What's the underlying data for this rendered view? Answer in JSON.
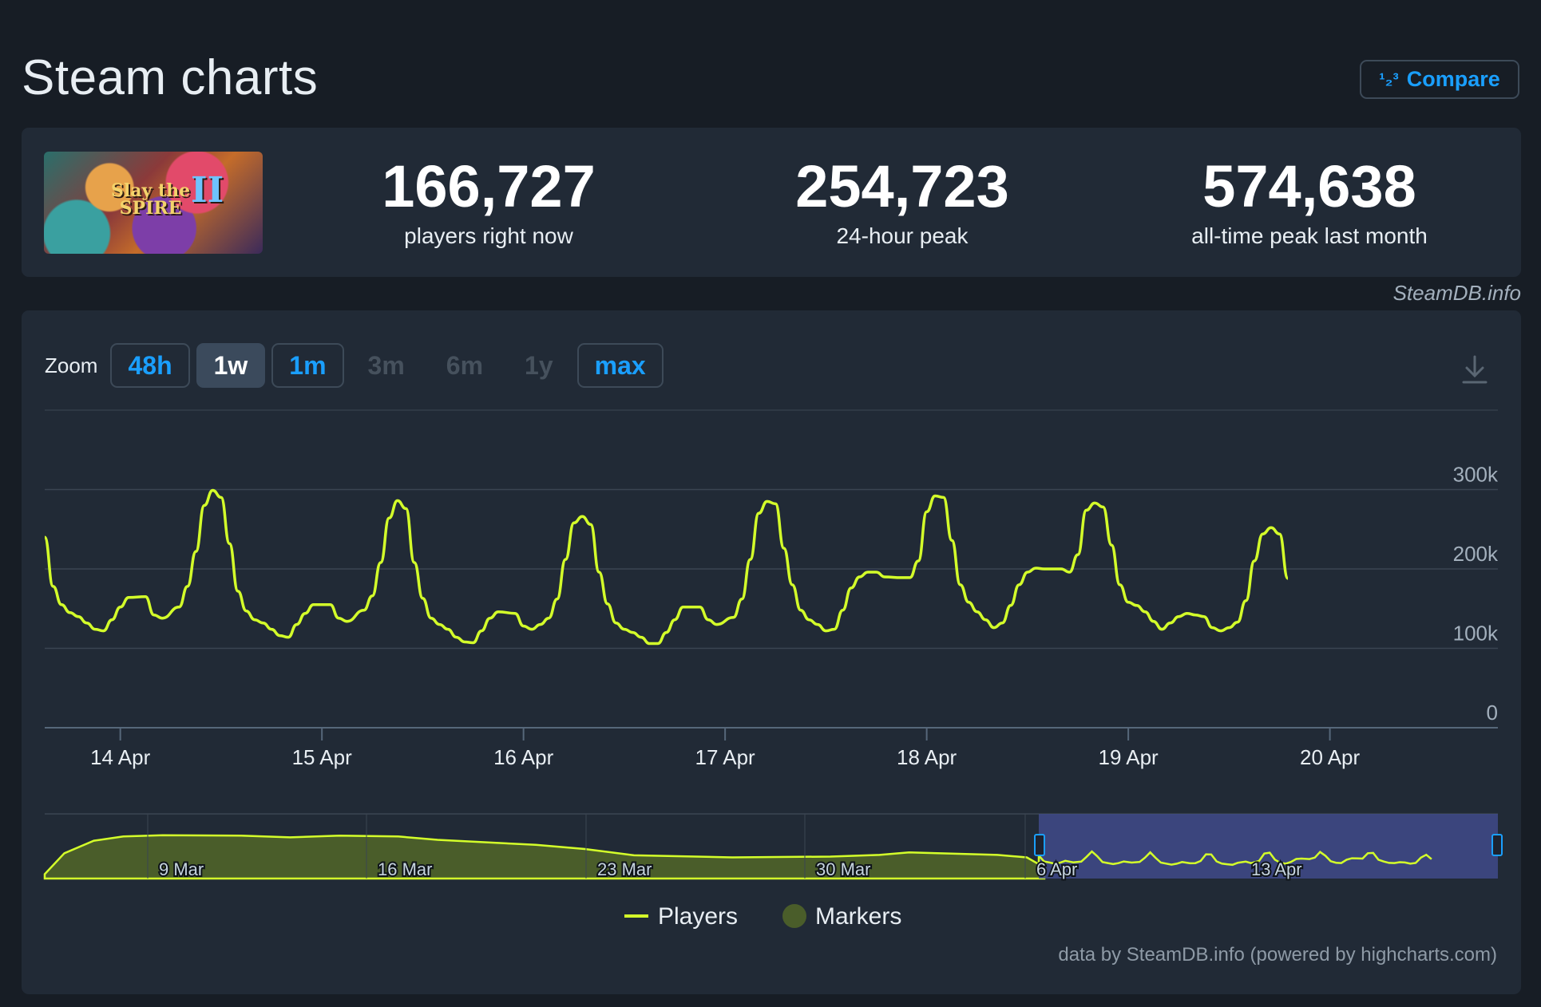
{
  "header": {
    "title": "Steam charts",
    "compare_label": "Compare",
    "compare_icon": "¹₂³"
  },
  "game": {
    "thumb_title_line1": "Slay the",
    "thumb_title_line2": "SPIRE",
    "thumb_title_numeral": "II"
  },
  "stats": {
    "current_players": "166,727",
    "current_players_label": "players right now",
    "peak_24h": "254,723",
    "peak_24h_label": "24-hour peak",
    "all_time_peak": "574,638",
    "all_time_peak_label": "all-time peak last month"
  },
  "attribution": "SteamDB.info",
  "zoom": {
    "label": "Zoom",
    "buttons": [
      {
        "label": "48h",
        "state": "on"
      },
      {
        "label": "1w",
        "state": "selected"
      },
      {
        "label": "1m",
        "state": "on"
      },
      {
        "label": "3m",
        "state": "off"
      },
      {
        "label": "6m",
        "state": "off"
      },
      {
        "label": "1y",
        "state": "off"
      },
      {
        "label": "max",
        "state": "on"
      }
    ]
  },
  "colors": {
    "players_line": "#d4ff2a",
    "navigator_fill": "#4a5d2a",
    "navigator_selection": "#3f4a8a",
    "markers": "#4a5d2a",
    "background": "#171d25",
    "card": "#212a36"
  },
  "chart_data": {
    "type": "line",
    "title": "",
    "xlabel": "",
    "ylabel": "",
    "ylim": [
      0,
      400000
    ],
    "y_ticks": [
      {
        "value": 0,
        "label": "0"
      },
      {
        "value": 100000,
        "label": "100k"
      },
      {
        "value": 200000,
        "label": "200k"
      },
      {
        "value": 300000,
        "label": "300k"
      }
    ],
    "x_ticks": [
      {
        "x": "2025-04-14",
        "label": "14 Apr"
      },
      {
        "x": "2025-04-15",
        "label": "15 Apr"
      },
      {
        "x": "2025-04-16",
        "label": "16 Apr"
      },
      {
        "x": "2025-04-17",
        "label": "17 Apr"
      },
      {
        "x": "2025-04-18",
        "label": "18 Apr"
      },
      {
        "x": "2025-04-19",
        "label": "19 Apr"
      },
      {
        "x": "2025-04-20",
        "label": "20 Apr"
      }
    ],
    "x_range": [
      "2025-04-13 15:00",
      "2025-04-20 20:00"
    ],
    "grid": true,
    "series": [
      {
        "name": "Players",
        "points": [
          [
            "2025-04-13 15:00",
            240000
          ],
          [
            "2025-04-13 16:00",
            178000
          ],
          [
            "2025-04-13 17:00",
            155000
          ],
          [
            "2025-04-13 18:00",
            145000
          ],
          [
            "2025-04-13 19:00",
            140000
          ],
          [
            "2025-04-13 20:00",
            132000
          ],
          [
            "2025-04-13 21:00",
            124000
          ],
          [
            "2025-04-13 22:00",
            122000
          ],
          [
            "2025-04-13 23:00",
            136000
          ],
          [
            "2025-04-14 00:00",
            152000
          ],
          [
            "2025-04-14 01:00",
            164000
          ],
          [
            "2025-04-14 03:00",
            165000
          ],
          [
            "2025-04-14 04:00",
            142000
          ],
          [
            "2025-04-14 05:00",
            138000
          ],
          [
            "2025-04-14 07:00",
            152000
          ],
          [
            "2025-04-14 08:00",
            178000
          ],
          [
            "2025-04-14 09:00",
            222000
          ],
          [
            "2025-04-14 10:00",
            280000
          ],
          [
            "2025-04-14 11:00",
            299000
          ],
          [
            "2025-04-14 12:00",
            290000
          ],
          [
            "2025-04-14 13:00",
            232000
          ],
          [
            "2025-04-14 14:00",
            172000
          ],
          [
            "2025-04-14 15:00",
            147000
          ],
          [
            "2025-04-14 16:00",
            136000
          ],
          [
            "2025-04-14 17:00",
            132000
          ],
          [
            "2025-04-14 18:00",
            124000
          ],
          [
            "2025-04-14 19:00",
            116000
          ],
          [
            "2025-04-14 20:00",
            114000
          ],
          [
            "2025-04-14 21:00",
            130000
          ],
          [
            "2025-04-14 22:00",
            144000
          ],
          [
            "2025-04-14 23:00",
            155000
          ],
          [
            "2025-04-15 01:00",
            155000
          ],
          [
            "2025-04-15 02:00",
            138000
          ],
          [
            "2025-04-15 03:00",
            134000
          ],
          [
            "2025-04-15 05:00",
            148000
          ],
          [
            "2025-04-15 06:00",
            166000
          ],
          [
            "2025-04-15 07:00",
            208000
          ],
          [
            "2025-04-15 08:00",
            264000
          ],
          [
            "2025-04-15 09:00",
            286000
          ],
          [
            "2025-04-15 10:00",
            276000
          ],
          [
            "2025-04-15 11:00",
            208000
          ],
          [
            "2025-04-15 12:00",
            163000
          ],
          [
            "2025-04-15 13:00",
            138000
          ],
          [
            "2025-04-15 14:00",
            130000
          ],
          [
            "2025-04-15 15:00",
            124000
          ],
          [
            "2025-04-15 16:00",
            114000
          ],
          [
            "2025-04-15 17:00",
            108000
          ],
          [
            "2025-04-15 18:00",
            107000
          ],
          [
            "2025-04-15 19:00",
            122000
          ],
          [
            "2025-04-15 20:00",
            138000
          ],
          [
            "2025-04-15 21:00",
            146000
          ],
          [
            "2025-04-15 23:00",
            144000
          ],
          [
            "2025-04-16 00:00",
            128000
          ],
          [
            "2025-04-16 01:00",
            124000
          ],
          [
            "2025-04-16 02:00",
            130000
          ],
          [
            "2025-04-16 03:00",
            138000
          ],
          [
            "2025-04-16 04:00",
            162000
          ],
          [
            "2025-04-16 05:00",
            212000
          ],
          [
            "2025-04-16 06:00",
            258000
          ],
          [
            "2025-04-16 07:00",
            266000
          ],
          [
            "2025-04-16 08:00",
            256000
          ],
          [
            "2025-04-16 09:00",
            196000
          ],
          [
            "2025-04-16 10:00",
            156000
          ],
          [
            "2025-04-16 11:00",
            132000
          ],
          [
            "2025-04-16 12:00",
            124000
          ],
          [
            "2025-04-16 13:00",
            120000
          ],
          [
            "2025-04-16 14:00",
            114000
          ],
          [
            "2025-04-16 15:00",
            106000
          ],
          [
            "2025-04-16 16:00",
            106000
          ],
          [
            "2025-04-16 17:00",
            120000
          ],
          [
            "2025-04-16 18:00",
            136000
          ],
          [
            "2025-04-16 19:00",
            152000
          ],
          [
            "2025-04-16 21:00",
            152000
          ],
          [
            "2025-04-16 22:00",
            136000
          ],
          [
            "2025-04-16 23:00",
            130000
          ],
          [
            "2025-04-17 01:00",
            139000
          ],
          [
            "2025-04-17 02:00",
            162000
          ],
          [
            "2025-04-17 03:00",
            212000
          ],
          [
            "2025-04-17 04:00",
            270000
          ],
          [
            "2025-04-17 05:00",
            285000
          ],
          [
            "2025-04-17 06:00",
            282000
          ],
          [
            "2025-04-17 07:00",
            226000
          ],
          [
            "2025-04-17 08:00",
            180000
          ],
          [
            "2025-04-17 09:00",
            148000
          ],
          [
            "2025-04-17 10:00",
            136000
          ],
          [
            "2025-04-17 11:00",
            130000
          ],
          [
            "2025-04-17 12:00",
            122000
          ],
          [
            "2025-04-17 13:00",
            124000
          ],
          [
            "2025-04-17 14:00",
            148000
          ],
          [
            "2025-04-17 15:00",
            176000
          ],
          [
            "2025-04-17 16:00",
            190000
          ],
          [
            "2025-04-17 17:00",
            196000
          ],
          [
            "2025-04-17 18:00",
            196000
          ],
          [
            "2025-04-17 19:00",
            190000
          ],
          [
            "2025-04-17 21:00",
            189000
          ],
          [
            "2025-04-17 22:00",
            189000
          ],
          [
            "2025-04-17 23:00",
            210000
          ],
          [
            "2025-04-18 00:00",
            272000
          ],
          [
            "2025-04-18 01:00",
            292000
          ],
          [
            "2025-04-18 02:00",
            290000
          ],
          [
            "2025-04-18 03:00",
            236000
          ],
          [
            "2025-04-18 04:00",
            180000
          ],
          [
            "2025-04-18 05:00",
            158000
          ],
          [
            "2025-04-18 06:00",
            146000
          ],
          [
            "2025-04-18 07:00",
            136000
          ],
          [
            "2025-04-18 08:00",
            126000
          ],
          [
            "2025-04-18 09:00",
            132000
          ],
          [
            "2025-04-18 10:00",
            154000
          ],
          [
            "2025-04-18 11:00",
            180000
          ],
          [
            "2025-04-18 12:00",
            196000
          ],
          [
            "2025-04-18 13:00",
            201000
          ],
          [
            "2025-04-18 14:00",
            200000
          ],
          [
            "2025-04-18 15:00",
            200000
          ],
          [
            "2025-04-18 16:00",
            200000
          ],
          [
            "2025-04-18 17:00",
            196000
          ],
          [
            "2025-04-18 18:00",
            218000
          ],
          [
            "2025-04-18 19:00",
            274000
          ],
          [
            "2025-04-18 20:00",
            283000
          ],
          [
            "2025-04-18 21:00",
            278000
          ],
          [
            "2025-04-18 22:00",
            230000
          ],
          [
            "2025-04-18 23:00",
            180000
          ],
          [
            "2025-04-19 00:00",
            158000
          ],
          [
            "2025-04-19 01:00",
            154000
          ],
          [
            "2025-04-19 02:00",
            146000
          ],
          [
            "2025-04-19 03:00",
            134000
          ],
          [
            "2025-04-19 04:00",
            124000
          ],
          [
            "2025-04-19 05:00",
            132000
          ],
          [
            "2025-04-19 06:00",
            140000
          ],
          [
            "2025-04-19 07:00",
            144000
          ],
          [
            "2025-04-19 08:00",
            142000
          ],
          [
            "2025-04-19 09:00",
            140000
          ],
          [
            "2025-04-19 10:00",
            126000
          ],
          [
            "2025-04-19 11:00",
            122000
          ],
          [
            "2025-04-19 12:00",
            126000
          ],
          [
            "2025-04-19 13:00",
            133000
          ],
          [
            "2025-04-19 14:00",
            160000
          ],
          [
            "2025-04-19 15:00",
            210000
          ],
          [
            "2025-04-19 16:00",
            244000
          ],
          [
            "2025-04-19 17:00",
            252000
          ],
          [
            "2025-04-19 18:00",
            244000
          ],
          [
            "2025-04-19 19:00",
            188000
          ]
        ]
      }
    ],
    "navigator": {
      "x_labels": [
        "9 Mar",
        "16 Mar",
        "23 Mar",
        "30 Mar",
        "6 Apr",
        "13 Apr"
      ],
      "selected_range": [
        "13 Apr",
        "20 Apr"
      ]
    },
    "legend": {
      "position": "bottom-center",
      "items": [
        {
          "label": "Players",
          "marker": "line"
        },
        {
          "label": "Markers",
          "marker": "circle"
        }
      ]
    },
    "credit": "data by SteamDB.info (powered by highcharts.com)"
  }
}
